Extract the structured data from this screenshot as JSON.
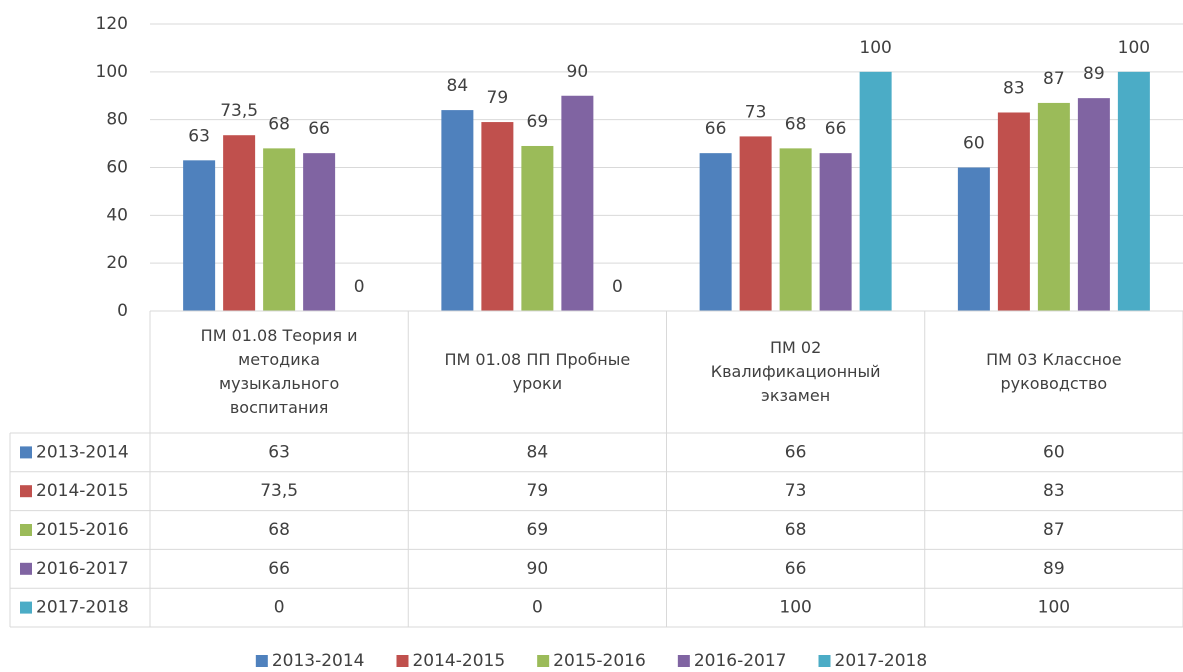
{
  "chart_data": {
    "type": "bar",
    "categories": [
      "ПМ 01.08 Теория и методика музыкального воспитания",
      "ПМ 01.08 ПП Пробные уроки",
      "ПМ 02 Квалификационный экзамен",
      "ПМ 03 Классное руководство"
    ],
    "series": [
      {
        "name": "2013-2014",
        "color": "#4f81bd",
        "values": [
          63,
          84,
          66,
          60
        ]
      },
      {
        "name": "2014-2015",
        "color": "#c0504d",
        "values": [
          73.5,
          79,
          73,
          83
        ],
        "value_labels": [
          "73,5",
          "79",
          "73",
          "83"
        ]
      },
      {
        "name": "2015-2016",
        "color": "#9bbb59",
        "values": [
          68,
          69,
          68,
          87
        ]
      },
      {
        "name": "2016-2017",
        "color": "#8064a2",
        "values": [
          66,
          90,
          66,
          89
        ]
      },
      {
        "name": "2017-2018",
        "color": "#4bacc6",
        "values": [
          0,
          0,
          100,
          100
        ]
      }
    ],
    "ylim": [
      0,
      120
    ],
    "yticks": [
      0,
      20,
      40,
      60,
      80,
      100,
      120
    ],
    "grid": true,
    "legend": "bottom",
    "data_table": true
  }
}
